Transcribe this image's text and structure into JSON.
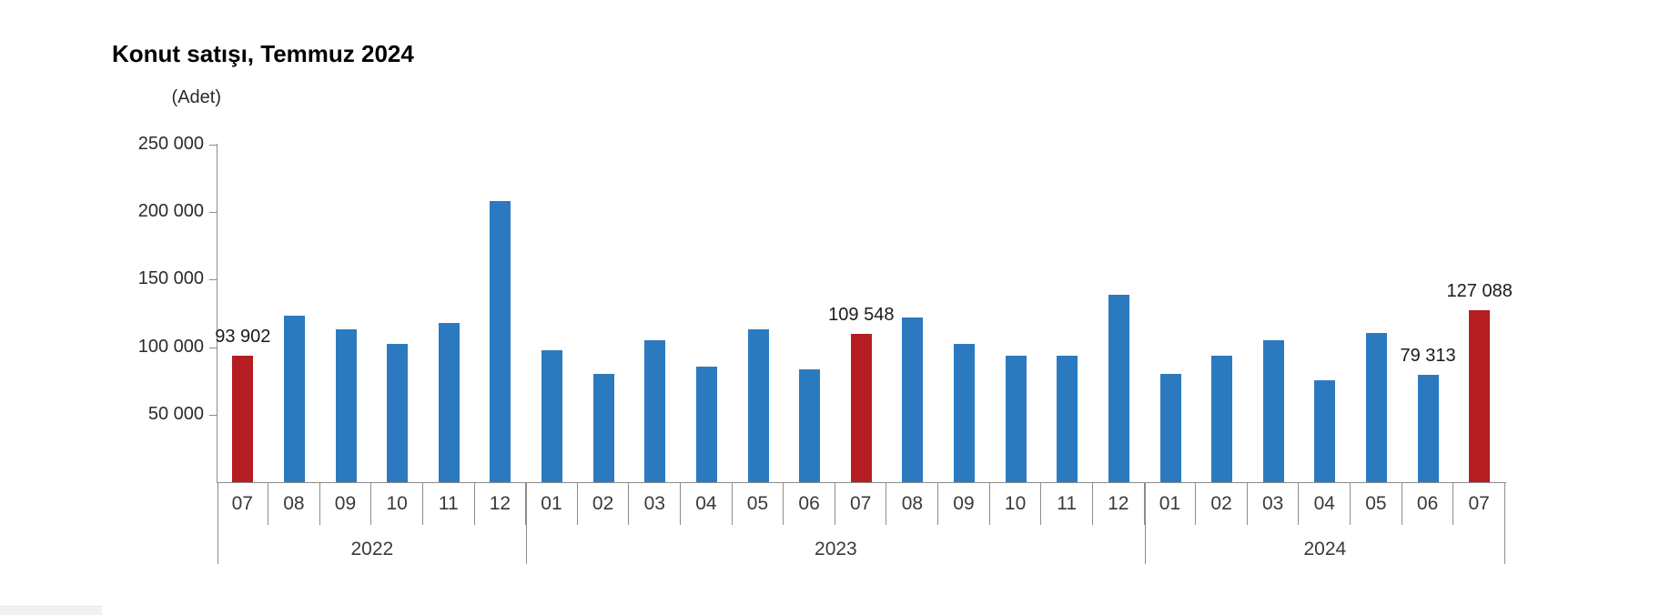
{
  "title": "Konut satışı, Temmuz 2024",
  "chart_data": {
    "type": "bar",
    "title": "Konut satışı, Temmuz 2024",
    "unit_label": "(Adet)",
    "ylabel": "(Adet)",
    "xlabel": "",
    "grid": false,
    "legend": "none",
    "ylim": [
      0,
      250000
    ],
    "ytick_values": [
      50000,
      100000,
      150000,
      200000,
      250000
    ],
    "ytick_labels": [
      "50 000",
      "100 000",
      "150 000",
      "200 000",
      "250 000"
    ],
    "categories": [
      "07",
      "08",
      "09",
      "10",
      "11",
      "12",
      "01",
      "02",
      "03",
      "04",
      "05",
      "06",
      "07",
      "08",
      "09",
      "10",
      "11",
      "12",
      "01",
      "02",
      "03",
      "04",
      "05",
      "06",
      "07"
    ],
    "year_groups": [
      {
        "label": "2022",
        "months": 6
      },
      {
        "label": "2023",
        "months": 12
      },
      {
        "label": "2024",
        "months": 7
      }
    ],
    "values": [
      93902,
      123491,
      113366,
      102533,
      117806,
      207963,
      97708,
      80031,
      105476,
      85652,
      113101,
      83636,
      109548,
      122091,
      102656,
      93761,
      93514,
      138577,
      80308,
      93482,
      105394,
      75569,
      110588,
      79313,
      127088
    ],
    "highlighted_indices": [
      0,
      12,
      24
    ],
    "data_labels": [
      {
        "index": 0,
        "label": "93 902"
      },
      {
        "index": 12,
        "label": "109 548"
      },
      {
        "index": 23,
        "label": "79 313"
      },
      {
        "index": 24,
        "label": "127 088"
      }
    ],
    "colors": {
      "bar": "#2b7ac0",
      "highlight": "#b51d22",
      "axis": "#8c8c8c",
      "text": "#2b2b2b"
    }
  }
}
